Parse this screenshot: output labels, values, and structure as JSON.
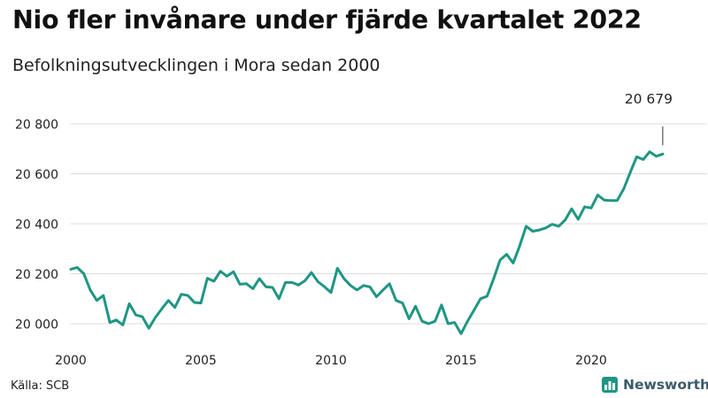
{
  "title": "Nio fler invånare under fjärde kvartalet 2022",
  "subtitle": "Befolkningsutvecklingen i Mora sedan 2000",
  "source": "Källa: SCB",
  "logo_text": "Newsworthy",
  "colors": {
    "line": "#1f9683",
    "grid": "#dddddd",
    "logo": "#3c5b6b"
  },
  "chart_data": {
    "type": "line",
    "title": "Nio fler invånare under fjärde kvartalet 2022",
    "subtitle": "Befolkningsutvecklingen i Mora sedan 2000",
    "xlabel": "",
    "ylabel": "",
    "x_ticks": [
      "2000",
      "2005",
      "2010",
      "2015",
      "2020"
    ],
    "x_tick_values": [
      2000,
      2005,
      2010,
      2015,
      2020
    ],
    "y_ticks": [
      20000,
      20200,
      20400,
      20600,
      20800
    ],
    "y_tick_labels": [
      "20 000",
      "20 200",
      "20 400",
      "20 600",
      "20 800"
    ],
    "ylim": [
      19940,
      20830
    ],
    "xlim": [
      2000,
      2023.2
    ],
    "grid": true,
    "annotation": {
      "label": "20 679",
      "value": 20679,
      "x": 2022.75
    },
    "series": [
      {
        "values": [
          [
            2000.0,
            20218
          ],
          [
            2000.25,
            20225
          ],
          [
            2000.5,
            20200
          ],
          [
            2000.75,
            20135
          ],
          [
            2001.0,
            20093
          ],
          [
            2001.25,
            20113
          ],
          [
            2001.5,
            20005
          ],
          [
            2001.75,
            20015
          ],
          [
            2002.0,
            19995
          ],
          [
            2002.25,
            20080
          ],
          [
            2002.5,
            20035
          ],
          [
            2002.75,
            20028
          ],
          [
            2003.0,
            19982
          ],
          [
            2003.25,
            20025
          ],
          [
            2003.5,
            20060
          ],
          [
            2003.75,
            20093
          ],
          [
            2004.0,
            20065
          ],
          [
            2004.25,
            20118
          ],
          [
            2004.5,
            20113
          ],
          [
            2004.75,
            20085
          ],
          [
            2005.0,
            20083
          ],
          [
            2005.25,
            20182
          ],
          [
            2005.5,
            20170
          ],
          [
            2005.75,
            20210
          ],
          [
            2006.0,
            20190
          ],
          [
            2006.25,
            20208
          ],
          [
            2006.5,
            20158
          ],
          [
            2006.75,
            20160
          ],
          [
            2007.0,
            20140
          ],
          [
            2007.25,
            20180
          ],
          [
            2007.5,
            20148
          ],
          [
            2007.75,
            20145
          ],
          [
            2008.0,
            20100
          ],
          [
            2008.25,
            20165
          ],
          [
            2008.5,
            20165
          ],
          [
            2008.75,
            20155
          ],
          [
            2009.0,
            20172
          ],
          [
            2009.25,
            20205
          ],
          [
            2009.5,
            20168
          ],
          [
            2009.75,
            20148
          ],
          [
            2010.0,
            20125
          ],
          [
            2010.25,
            20222
          ],
          [
            2010.5,
            20180
          ],
          [
            2010.75,
            20153
          ],
          [
            2011.0,
            20135
          ],
          [
            2011.25,
            20153
          ],
          [
            2011.5,
            20147
          ],
          [
            2011.75,
            20108
          ],
          [
            2012.0,
            20135
          ],
          [
            2012.25,
            20160
          ],
          [
            2012.5,
            20093
          ],
          [
            2012.75,
            20083
          ],
          [
            2013.0,
            20020
          ],
          [
            2013.25,
            20070
          ],
          [
            2013.5,
            20010
          ],
          [
            2013.75,
            20000
          ],
          [
            2014.0,
            20010
          ],
          [
            2014.25,
            20075
          ],
          [
            2014.5,
            20000
          ],
          [
            2014.75,
            20005
          ],
          [
            2015.0,
            19960
          ],
          [
            2015.25,
            20010
          ],
          [
            2015.5,
            20055
          ],
          [
            2015.75,
            20100
          ],
          [
            2016.0,
            20110
          ],
          [
            2016.25,
            20180
          ],
          [
            2016.5,
            20255
          ],
          [
            2016.75,
            20278
          ],
          [
            2017.0,
            20243
          ],
          [
            2017.25,
            20310
          ],
          [
            2017.5,
            20390
          ],
          [
            2017.75,
            20370
          ],
          [
            2018.0,
            20375
          ],
          [
            2018.25,
            20383
          ],
          [
            2018.5,
            20398
          ],
          [
            2018.75,
            20390
          ],
          [
            2019.0,
            20415
          ],
          [
            2019.25,
            20460
          ],
          [
            2019.5,
            20418
          ],
          [
            2019.75,
            20468
          ],
          [
            2020.0,
            20463
          ],
          [
            2020.25,
            20515
          ],
          [
            2020.5,
            20495
          ],
          [
            2020.75,
            20493
          ],
          [
            2021.0,
            20493
          ],
          [
            2021.25,
            20540
          ],
          [
            2021.5,
            20605
          ],
          [
            2021.75,
            20668
          ],
          [
            2022.0,
            20657
          ],
          [
            2022.25,
            20688
          ],
          [
            2022.5,
            20670
          ],
          [
            2022.75,
            20679
          ]
        ]
      }
    ]
  }
}
